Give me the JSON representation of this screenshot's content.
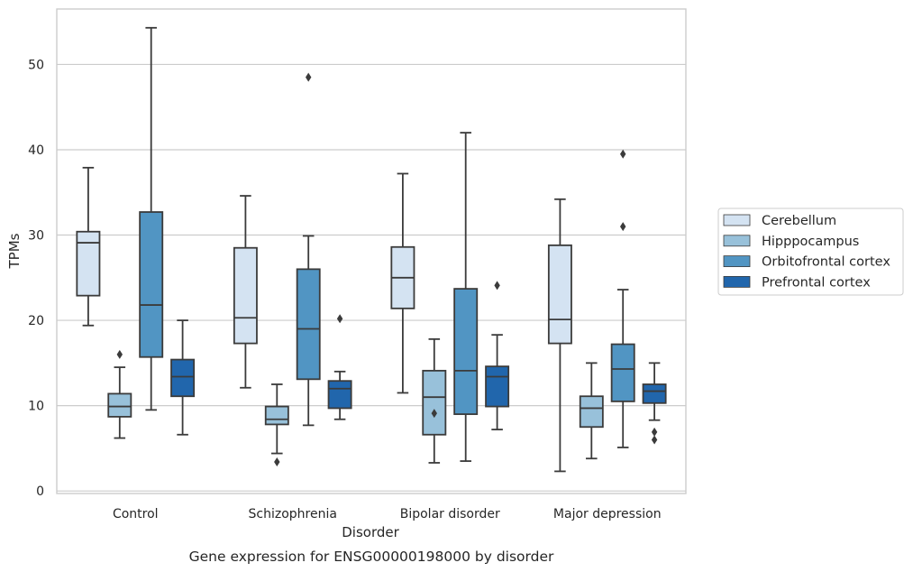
{
  "chart_data": {
    "type": "box",
    "ylabel": "TPMs",
    "xlabel": "Disorder",
    "caption": "Gene expression for ENSG00000198000 by disorder",
    "ylim": [
      -0.3,
      56.5
    ],
    "yticks": [
      0,
      10,
      20,
      30,
      40,
      50
    ],
    "grid": "horizontal",
    "legend_position": "right",
    "categories": [
      "Control",
      "Schizophrenia",
      "Bipolar disorder",
      "Major depression"
    ],
    "series": [
      {
        "name": "Cerebellum",
        "color": "#d4e3f2",
        "boxes": [
          {
            "whislo": 19.4,
            "q1": 22.9,
            "med": 29.1,
            "q3": 30.4,
            "whishi": 37.9,
            "fliers": []
          },
          {
            "whislo": 12.1,
            "q1": 17.3,
            "med": 20.3,
            "q3": 28.5,
            "whishi": 34.6,
            "fliers": []
          },
          {
            "whislo": 11.5,
            "q1": 21.4,
            "med": 25.0,
            "q3": 28.6,
            "whishi": 37.2,
            "fliers": []
          },
          {
            "whislo": 2.3,
            "q1": 17.3,
            "med": 20.1,
            "q3": 28.8,
            "whishi": 34.2,
            "fliers": []
          }
        ]
      },
      {
        "name": "Hipppocampus",
        "color": "#98c1da",
        "boxes": [
          {
            "whislo": 6.2,
            "q1": 8.7,
            "med": 9.9,
            "q3": 11.4,
            "whishi": 14.5,
            "fliers": [
              16.0
            ]
          },
          {
            "whislo": 4.4,
            "q1": 7.8,
            "med": 8.4,
            "q3": 9.9,
            "whishi": 12.5,
            "fliers": [
              3.4
            ]
          },
          {
            "whislo": 3.3,
            "q1": 6.6,
            "med": 11.0,
            "q3": 14.1,
            "whishi": 17.8,
            "fliers": [
              9.1
            ]
          },
          {
            "whislo": 3.8,
            "q1": 7.5,
            "med": 9.7,
            "q3": 11.1,
            "whishi": 15.0,
            "fliers": []
          }
        ]
      },
      {
        "name": "Orbitofrontal cortex",
        "color": "#5195c3",
        "boxes": [
          {
            "whislo": 9.5,
            "q1": 15.7,
            "med": 21.8,
            "q3": 32.7,
            "whishi": 54.3,
            "fliers": []
          },
          {
            "whislo": 7.7,
            "q1": 13.1,
            "med": 19.0,
            "q3": 26.0,
            "whishi": 29.9,
            "fliers": [
              48.5
            ]
          },
          {
            "whislo": 3.5,
            "q1": 9.0,
            "med": 14.1,
            "q3": 23.7,
            "whishi": 42.0,
            "fliers": []
          },
          {
            "whislo": 5.1,
            "q1": 10.5,
            "med": 14.3,
            "q3": 17.2,
            "whishi": 23.6,
            "fliers": [
              31.0,
              39.5
            ]
          }
        ]
      },
      {
        "name": "Prefrontal cortex",
        "color": "#2166ac",
        "boxes": [
          {
            "whislo": 6.6,
            "q1": 11.1,
            "med": 13.4,
            "q3": 15.4,
            "whishi": 20.0,
            "fliers": []
          },
          {
            "whislo": 8.4,
            "q1": 9.7,
            "med": 12.0,
            "q3": 12.9,
            "whishi": 14.0,
            "fliers": [
              20.2
            ]
          },
          {
            "whislo": 7.2,
            "q1": 9.9,
            "med": 13.4,
            "q3": 14.6,
            "whishi": 18.3,
            "fliers": [
              24.1
            ]
          },
          {
            "whislo": 8.3,
            "q1": 10.3,
            "med": 11.7,
            "q3": 12.5,
            "whishi": 15.0,
            "fliers": [
              6.0,
              6.9
            ]
          }
        ]
      }
    ]
  }
}
